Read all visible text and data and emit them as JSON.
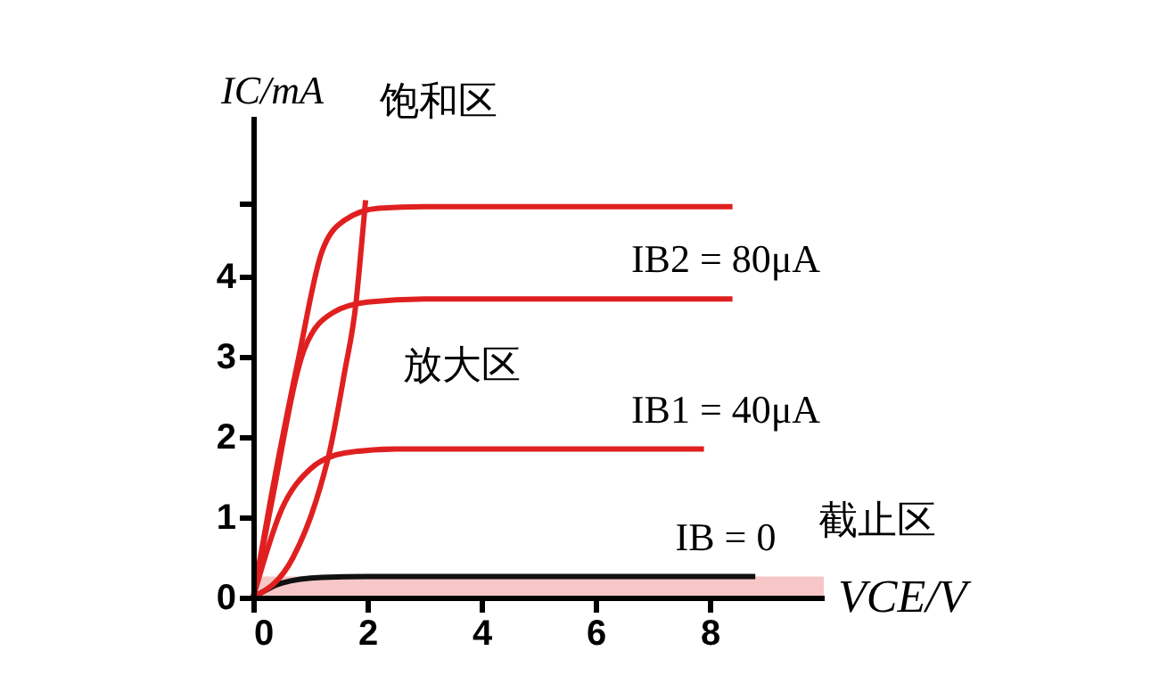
{
  "chart_data": {
    "type": "line",
    "xlabel": "VCE/V",
    "ylabel": "IC/mA",
    "xlim": [
      0,
      10
    ],
    "ylim": [
      0,
      6
    ],
    "xticks": [
      0,
      2,
      4,
      6,
      8
    ],
    "yticks": [
      0,
      1,
      2,
      3,
      4,
      {
        "value": 4.9,
        "label": null
      }
    ],
    "grid": false,
    "marker": "none",
    "line_style": "solid",
    "series": [
      {
        "color": "#e02020",
        "x": [
          0,
          0.3,
          0.8,
          1.2,
          1.6,
          2.2,
          3,
          8.4
        ],
        "values": [
          0,
          1.2,
          3,
          4.3,
          4.7,
          4.85,
          4.87,
          4.87
        ]
      },
      {
        "name": "IB2 = 80μA",
        "color": "#e02020",
        "x": [
          0,
          0.3,
          0.9,
          1.4,
          2,
          3,
          8.4
        ],
        "values": [
          0,
          1.1,
          3.1,
          3.55,
          3.68,
          3.72,
          3.72
        ]
      },
      {
        "name": "IB1 = 40μA",
        "color": "#e02020",
        "x": [
          0,
          0.5,
          1,
          1.6,
          2.5,
          7.9
        ],
        "values": [
          0,
          1.1,
          1.6,
          1.8,
          1.85,
          1.85
        ]
      },
      {
        "name": "IB = 0",
        "color": "#111111",
        "x": [
          0,
          0.5,
          1.2,
          2,
          8.8
        ],
        "values": [
          0,
          0.18,
          0.25,
          0.26,
          0.26
        ]
      },
      {
        "color": "#e02020",
        "x": [
          0,
          0.7,
          1.1,
          1.35,
          1.6,
          1.8,
          1.9,
          1.97
        ],
        "values": [
          0,
          0.5,
          1.2,
          1.85,
          2.8,
          3.66,
          4.4,
          4.95
        ]
      }
    ],
    "bands": [
      {
        "axis": "y",
        "from": 0,
        "to": 0.26,
        "color": "#e02020"
      }
    ],
    "annotations": [
      "饱和区",
      "放大区",
      "截止区"
    ]
  }
}
